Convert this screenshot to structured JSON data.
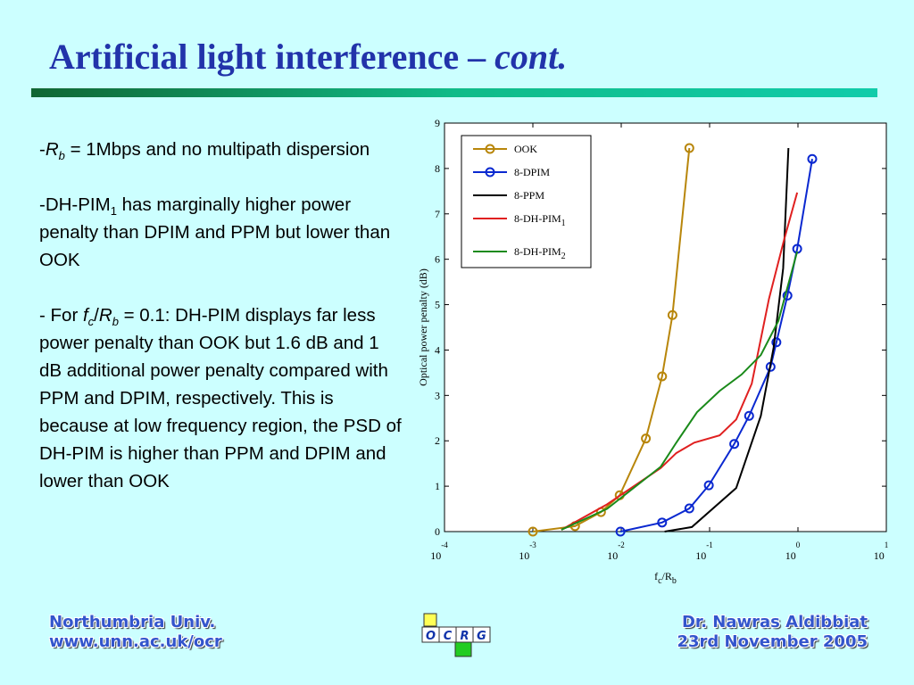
{
  "title": {
    "main": "Artificial light interference – ",
    "italic": "cont."
  },
  "bullets": [
    [
      {
        "t": "-"
      },
      {
        "t": "R",
        "i": true
      },
      {
        "t": "b",
        "i": true,
        "sub": true
      },
      {
        "t": " =  1Mbps and no multipath dispersion"
      }
    ],
    [
      {
        "t": "-DH-PIM"
      },
      {
        "t": "1",
        "sub": true
      },
      {
        "t": " has marginally higher power penalty than DPIM and PPM but lower than OOK"
      }
    ],
    [
      {
        "t": "- For "
      },
      {
        "t": "f",
        "i": true
      },
      {
        "t": "c",
        "i": true,
        "sub": true
      },
      {
        "t": "/"
      },
      {
        "t": "R",
        "i": true
      },
      {
        "t": "b",
        "i": true,
        "sub": true
      },
      {
        "t": " = 0.1: DH-PIM displays far less power penalty than OOK but 1.6 dB and 1 dB additional power penalty compared with PPM and DPIM, respectively. This is because at low frequency region, the PSD of DH-PIM is higher than PPM and DPIM and lower than OOK"
      }
    ]
  ],
  "footer": {
    "left": [
      "Northumbria   Univ.",
      "www.unn.ac.uk/ocr"
    ],
    "right": [
      "Dr. Nawras Aldibbiat",
      "23rd November 2005"
    ],
    "logo": [
      "O",
      "C",
      "R",
      "G"
    ]
  },
  "chart_data": {
    "type": "line",
    "ylabel": "Optical power penalty (dB)",
    "xlabel": [
      {
        "t": "f"
      },
      {
        "t": "c",
        "sub": true
      },
      {
        "t": "/R"
      },
      {
        "t": "b",
        "sub": true
      }
    ],
    "xscale": "log",
    "xlim": [
      0.0001,
      10
    ],
    "xticks": [
      {
        "value": 0.0001,
        "label": "10",
        "exponent": "-4"
      },
      {
        "value": 0.001,
        "label": "10",
        "exponent": "-3"
      },
      {
        "value": 0.01,
        "label": "10",
        "exponent": "-2"
      },
      {
        "value": 0.1,
        "label": "10",
        "exponent": "-1"
      },
      {
        "value": 1,
        "label": "10",
        "exponent": "0"
      },
      {
        "value": 10,
        "label": "10",
        "exponent": "1"
      }
    ],
    "ylim": [
      0,
      9
    ],
    "yticks": [
      0,
      1,
      2,
      3,
      4,
      5,
      6,
      7,
      8,
      9
    ],
    "legend": "upper left",
    "series": [
      {
        "name": "OOK",
        "color": "#b8860b",
        "markers": true,
        "x": [
          0.001,
          0.003,
          0.0059,
          0.0096,
          0.019,
          0.029,
          0.038,
          0.059
        ],
        "values": [
          0,
          0.12,
          0.43,
          0.8,
          2.05,
          3.42,
          4.77,
          8.45
        ]
      },
      {
        "name": "8-DPIM",
        "color": "#0a28d0",
        "markers": true,
        "x": [
          0.0098,
          0.029,
          0.059,
          0.098,
          0.19,
          0.28,
          0.49,
          0.57,
          0.76,
          0.98,
          1.45
        ],
        "values": [
          0,
          0.2,
          0.51,
          1.02,
          1.93,
          2.55,
          3.63,
          4.17,
          5.2,
          6.23,
          8.21
        ]
      },
      {
        "name": "8-PPM",
        "color": "#000000",
        "markers": false,
        "x": [
          0.031,
          0.063,
          0.2,
          0.38,
          0.53,
          0.68,
          0.78
        ],
        "values": [
          0,
          0.1,
          0.96,
          2.55,
          4.05,
          5.8,
          8.45
        ]
      },
      {
        "name": "8-DH-PIM",
        "name_sub": "1",
        "color": "#e02020",
        "markers": false,
        "x": [
          0.0021,
          0.0069,
          0.028,
          0.042,
          0.067,
          0.13,
          0.2,
          0.3,
          0.47,
          0.69,
          0.98
        ],
        "values": [
          0.04,
          0.6,
          1.4,
          1.73,
          1.96,
          2.12,
          2.47,
          3.26,
          5.13,
          6.4,
          7.47
        ]
      },
      {
        "name": "8-DH-PIM",
        "name_sub": "2",
        "color": "#1a8a1a",
        "markers": false,
        "x": [
          0.0021,
          0.0069,
          0.028,
          0.042,
          0.072,
          0.13,
          0.23,
          0.38,
          0.6,
          0.98
        ],
        "values": [
          0.04,
          0.5,
          1.43,
          1.96,
          2.63,
          3.1,
          3.46,
          3.89,
          4.64,
          6.17
        ]
      }
    ]
  }
}
